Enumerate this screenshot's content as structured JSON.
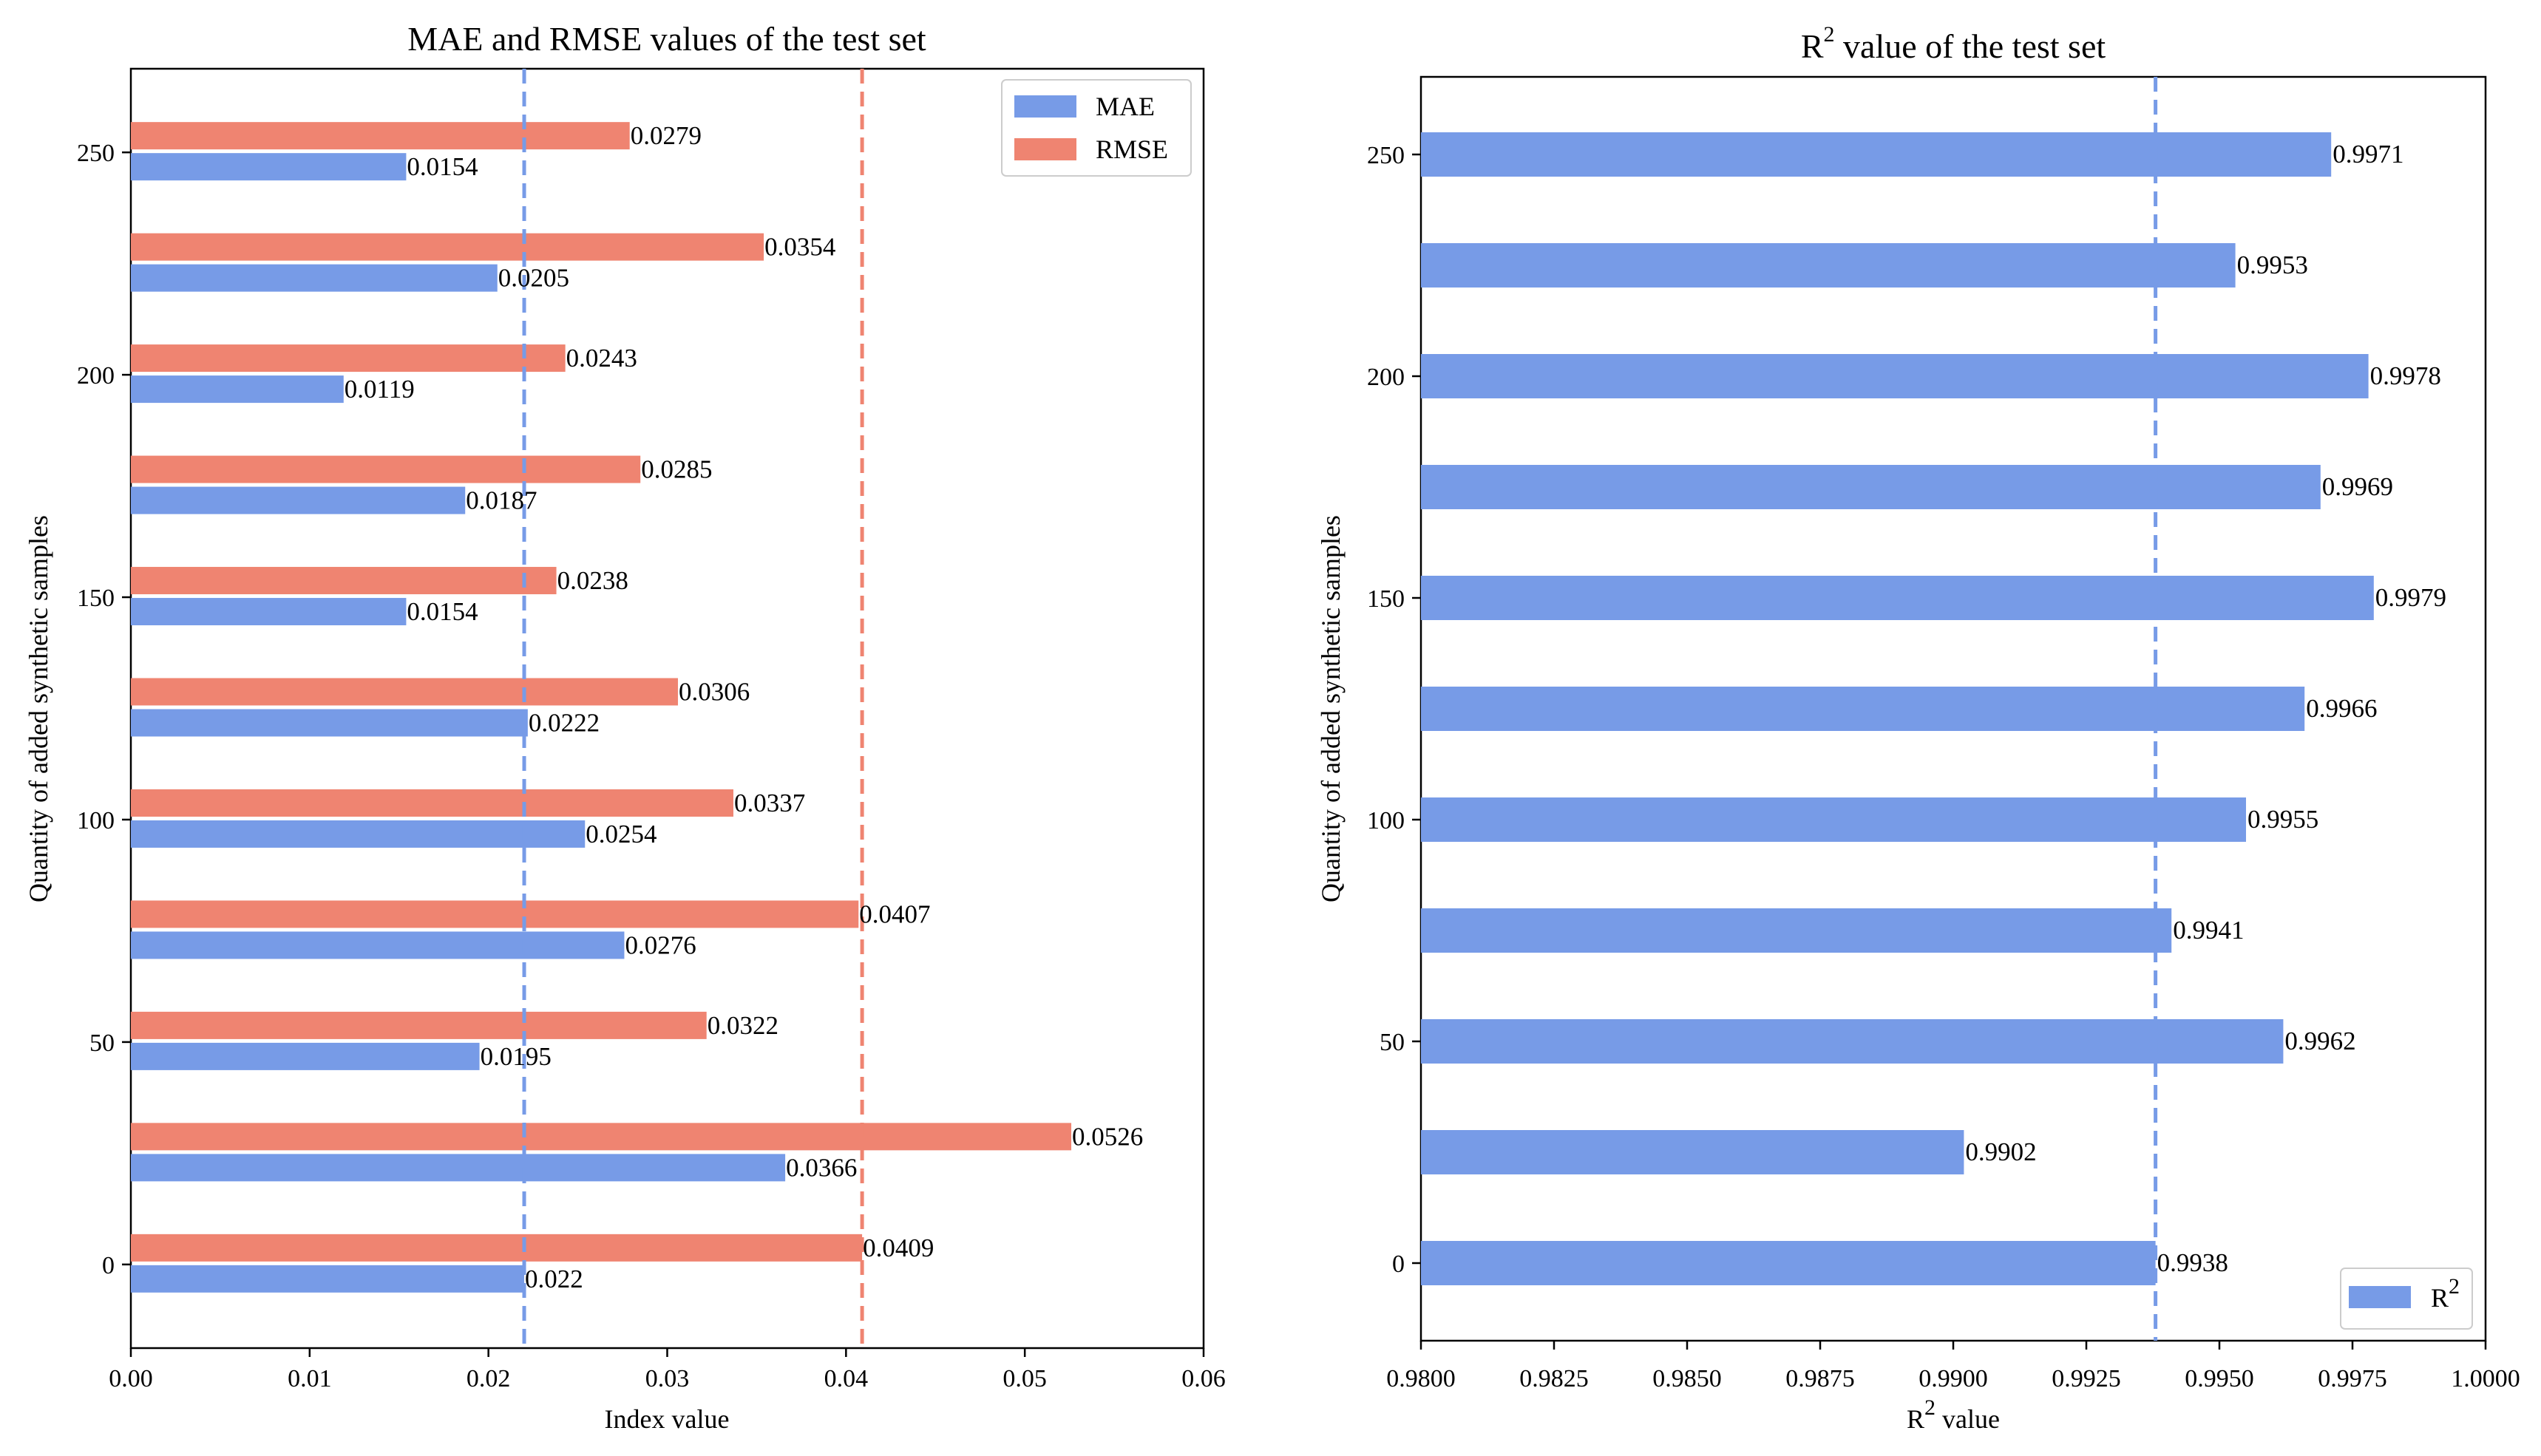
{
  "colors": {
    "mae": "#779be7",
    "rmse": "#ef8471",
    "r2": "#779be7",
    "mae_ref": "#779be7",
    "rmse_ref": "#ef8471"
  },
  "chart_data": [
    {
      "type": "bar",
      "orientation": "horizontal",
      "title": "MAE and RMSE values of the test set",
      "xlabel": "Index value",
      "ylabel": "Quantity of added synthetic samples",
      "xlim": [
        0,
        0.06
      ],
      "xticks": [
        "0.00",
        "0.01",
        "0.02",
        "0.03",
        "0.04",
        "0.05",
        "0.06"
      ],
      "yticks": [
        "0",
        "50",
        "100",
        "150",
        "200",
        "250"
      ],
      "categories": [
        0,
        25,
        50,
        75,
        100,
        125,
        150,
        175,
        200,
        225,
        250
      ],
      "series": [
        {
          "name": "MAE",
          "values": [
            0.022,
            0.0366,
            0.0195,
            0.0276,
            0.0254,
            0.0222,
            0.0154,
            0.0187,
            0.0119,
            0.0205,
            0.0154
          ],
          "labels": [
            "0.022",
            "0.0366",
            "0.0195",
            "0.0276",
            "0.0254",
            "0.0222",
            "0.0154",
            "0.0187",
            "0.0119",
            "0.0205",
            "0.0154"
          ]
        },
        {
          "name": "RMSE",
          "values": [
            0.0409,
            0.0526,
            0.0322,
            0.0407,
            0.0337,
            0.0306,
            0.0238,
            0.0285,
            0.0243,
            0.0354,
            0.0279
          ],
          "labels": [
            "0.0409",
            "0.0526",
            "0.0322",
            "0.0407",
            "0.0337",
            "0.0306",
            "0.0238",
            "0.0285",
            "0.0243",
            "0.0354",
            "0.0279"
          ]
        }
      ],
      "reference_lines": [
        {
          "series": "MAE",
          "x": 0.022
        },
        {
          "series": "RMSE",
          "x": 0.0409
        }
      ],
      "legend": {
        "placement": "top-right",
        "entries": [
          "MAE",
          "RMSE"
        ]
      }
    },
    {
      "type": "bar",
      "orientation": "horizontal",
      "title": "R",
      "title_sup": "2",
      "title_rest": " value of the test set",
      "xlabel": "R",
      "xlabel_sup": "2",
      "xlabel_rest": " value",
      "ylabel": "Quantity of added synthetic samples",
      "xlim": [
        0.98,
        1.0
      ],
      "xticks": [
        "0.9800",
        "0.9825",
        "0.9850",
        "0.9875",
        "0.9900",
        "0.9925",
        "0.9950",
        "0.9975",
        "1.0000"
      ],
      "yticks": [
        "0",
        "50",
        "100",
        "150",
        "200",
        "250"
      ],
      "categories": [
        0,
        25,
        50,
        75,
        100,
        125,
        150,
        175,
        200,
        225,
        250
      ],
      "series": [
        {
          "name": "R2",
          "values": [
            0.9938,
            0.9902,
            0.9962,
            0.9941,
            0.9955,
            0.9966,
            0.9979,
            0.9969,
            0.9978,
            0.9953,
            0.9971
          ],
          "labels": [
            "0.9938",
            "0.9902",
            "0.9962",
            "0.9941",
            "0.9955",
            "0.9966",
            "0.9979",
            "0.9969",
            "0.9978",
            "0.9953",
            "0.9971"
          ]
        }
      ],
      "reference_lines": [
        {
          "series": "R2",
          "x": 0.9938
        }
      ],
      "legend": {
        "placement": "bottom-right",
        "entries": [
          "R",
          "2"
        ]
      }
    }
  ]
}
